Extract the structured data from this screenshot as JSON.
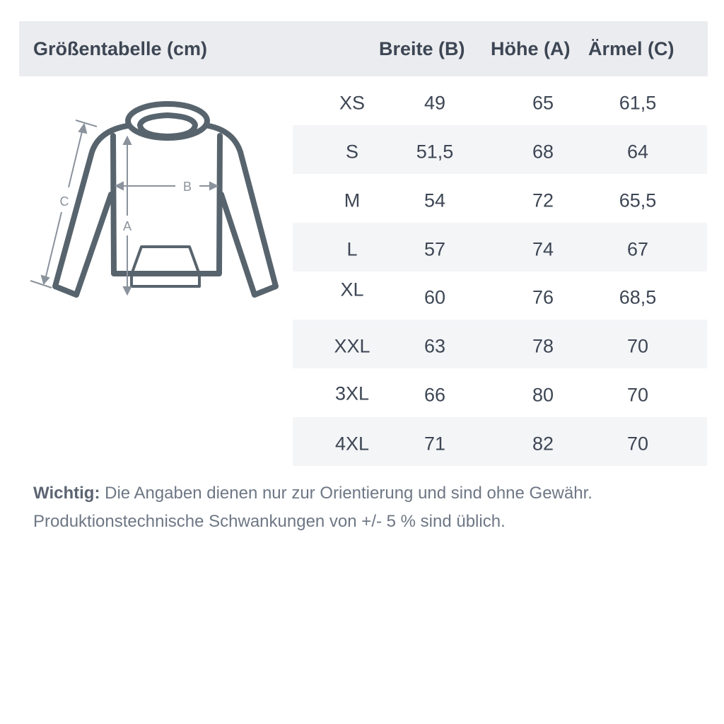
{
  "header": {
    "title": "Größentabelle (cm)",
    "columns": [
      "Breite (B)",
      "Höhe (A)",
      "Ärmel (C)"
    ]
  },
  "diagram": {
    "labels": {
      "a": "A",
      "b": "B",
      "c": "C"
    },
    "colors": {
      "outline": "#58646d",
      "measure": "#8a929c"
    }
  },
  "rows": [
    {
      "size": "XS",
      "breite": "49",
      "hoehe": "65",
      "aermel": "61,5"
    },
    {
      "size": "S",
      "breite": "51,5",
      "hoehe": "68",
      "aermel": "64"
    },
    {
      "size": "M",
      "breite": "54",
      "hoehe": "72",
      "aermel": "65,5"
    },
    {
      "size": "L",
      "breite": "57",
      "hoehe": "74",
      "aermel": "67"
    },
    {
      "size": "XL",
      "breite": "60",
      "hoehe": "76",
      "aermel": "68,5"
    },
    {
      "size": "XXL",
      "breite": "63",
      "hoehe": "78",
      "aermel": "70"
    },
    {
      "size": "3XL",
      "breite": "66",
      "hoehe": "80",
      "aermel": "70"
    },
    {
      "size": "4XL",
      "breite": "71",
      "hoehe": "82",
      "aermel": "70"
    }
  ],
  "note": {
    "label": "Wichtig:",
    "line1": " Die Angaben dienen nur zur Orientierung und sind ohne Gewähr.",
    "line2": "Produktionstechnische Schwankungen von +/- 5 % sind üblich."
  }
}
